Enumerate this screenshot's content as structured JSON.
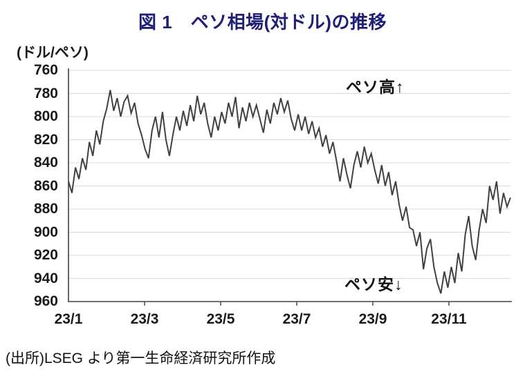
{
  "title": "図 1　ペソ相場(対ドル)の推移",
  "unit_label": "(ドル/ペソ)",
  "annotations": {
    "high": "ペソ高↑",
    "low": "ペソ安↓"
  },
  "source": "(出所)LSEG より第一生命経済研究所作成",
  "colors": {
    "title": "#1f1f78",
    "series_line": "#404040",
    "gridline": "#d9d9d9",
    "axis": "#404040",
    "text": "#111111"
  },
  "chart_data": {
    "type": "line",
    "title": "図 1　ペソ相場(対ドル)の推移",
    "xlabel": "",
    "ylabel": "(ドル/ペソ)",
    "y_axis_inverted": true,
    "ylim": [
      760,
      960
    ],
    "grid": "horizontal",
    "legend": "none",
    "y_ticks": [
      760,
      780,
      800,
      820,
      840,
      860,
      880,
      900,
      920,
      940,
      960
    ],
    "x_ticks": [
      "23/1",
      "23/3",
      "23/5",
      "23/7",
      "23/9",
      "23/11"
    ],
    "x_tick_spacing_months": 2,
    "series": [
      {
        "name": "ペソ相場(対ドル)",
        "period": "2023/1 - 2023/12 (daily, estimated)",
        "values": [
          856,
          866,
          844,
          854,
          836,
          846,
          822,
          834,
          812,
          824,
          804,
          793,
          777,
          795,
          784,
          800,
          787,
          782,
          797,
          788,
          806,
          816,
          828,
          836,
          812,
          800,
          818,
          796,
          820,
          834,
          816,
          800,
          812,
          795,
          808,
          790,
          804,
          782,
          798,
          788,
          806,
          818,
          800,
          812,
          796,
          806,
          788,
          800,
          783,
          810,
          792,
          804,
          788,
          800,
          790,
          802,
          814,
          794,
          806,
          788,
          798,
          784,
          796,
          786,
          802,
          812,
          798,
          812,
          800,
          815,
          804,
          818,
          810,
          826,
          816,
          832,
          822,
          838,
          856,
          836,
          850,
          862,
          842,
          830,
          844,
          826,
          840,
          832,
          846,
          858,
          842,
          860,
          848,
          868,
          856,
          876,
          890,
          878,
          896,
          898,
          912,
          900,
          932,
          914,
          906,
          930,
          944,
          953,
          934,
          948,
          930,
          944,
          918,
          934,
          902,
          886,
          912,
          924,
          898,
          880,
          892,
          860,
          872,
          856,
          884,
          866,
          878,
          870
        ]
      }
    ]
  }
}
